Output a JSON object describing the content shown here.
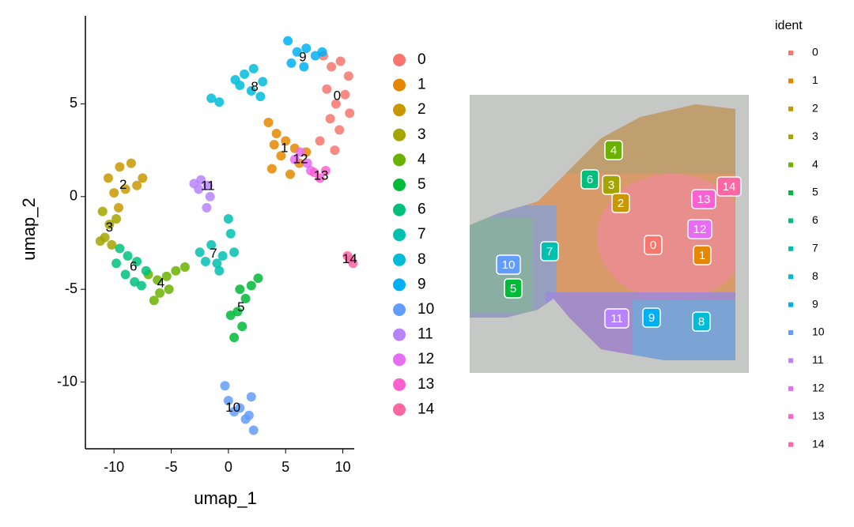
{
  "chart_data": [
    {
      "type": "scatter",
      "x_label": "umap_1",
      "y_label": "umap_2",
      "xlim": [
        -12.5,
        11
      ],
      "ylim": [
        -13.6,
        9.75
      ],
      "xticks": [
        -10,
        -5,
        0,
        5,
        10
      ],
      "yticks": [
        -10,
        -5,
        0,
        5
      ],
      "series": [
        {
          "name": "0",
          "color": "#F8766D",
          "label_x": 9.5,
          "label_y": 5.4,
          "x": [
            8.3,
            9.0,
            9.8,
            10.5,
            8.6,
            9.4,
            10.2,
            8.9,
            9.7,
            10.6,
            8.0,
            9.3
          ],
          "y": [
            7.6,
            7.0,
            7.3,
            6.5,
            5.8,
            5.0,
            5.5,
            4.2,
            3.6,
            4.5,
            3.0,
            2.5
          ]
        },
        {
          "name": "1",
          "color": "#E58700",
          "label_x": 4.9,
          "label_y": 2.6,
          "x": [
            3.5,
            4.2,
            5.0,
            5.8,
            4.6,
            6.2,
            3.8,
            5.4,
            6.8,
            4.0
          ],
          "y": [
            4.0,
            3.4,
            3.0,
            2.6,
            2.2,
            1.8,
            1.5,
            1.2,
            2.4,
            2.8
          ]
        },
        {
          "name": "2",
          "color": "#C99800",
          "label_x": -9.2,
          "label_y": 0.6,
          "x": [
            -10.5,
            -9.5,
            -8.5,
            -7.5,
            -10.0,
            -9.0,
            -8.0,
            -9.6
          ],
          "y": [
            1.0,
            1.6,
            1.8,
            1.0,
            0.2,
            0.4,
            0.6,
            -0.6
          ]
        },
        {
          "name": "3",
          "color": "#A3A500",
          "label_x": -10.4,
          "label_y": -1.7,
          "x": [
            -11.0,
            -10.4,
            -10.8,
            -9.8,
            -11.2,
            -10.2
          ],
          "y": [
            -0.8,
            -1.5,
            -2.2,
            -1.2,
            -2.4,
            -2.6
          ]
        },
        {
          "name": "4",
          "color": "#6BB100",
          "label_x": -5.9,
          "label_y": -4.7,
          "x": [
            -7.0,
            -6.2,
            -5.4,
            -4.6,
            -6.0,
            -5.2,
            -3.8,
            -6.5
          ],
          "y": [
            -4.2,
            -4.5,
            -4.3,
            -4.0,
            -5.2,
            -5.0,
            -3.8,
            -5.6
          ]
        },
        {
          "name": "5",
          "color": "#00BA38",
          "label_x": 1.1,
          "label_y": -6.0,
          "x": [
            1.0,
            1.5,
            2.0,
            2.6,
            0.8,
            1.2,
            0.5,
            0.2
          ],
          "y": [
            -5.0,
            -5.5,
            -4.8,
            -4.4,
            -6.2,
            -7.0,
            -7.6,
            -6.4
          ]
        },
        {
          "name": "6",
          "color": "#00BF7D",
          "label_x": -8.3,
          "label_y": -3.8,
          "x": [
            -9.5,
            -8.8,
            -8.0,
            -7.2,
            -9.0,
            -8.2,
            -7.6,
            -9.8
          ],
          "y": [
            -2.8,
            -3.2,
            -3.5,
            -4.0,
            -4.2,
            -4.6,
            -4.8,
            -3.6
          ]
        },
        {
          "name": "7",
          "color": "#00C0AF",
          "label_x": -1.3,
          "label_y": -3.1,
          "x": [
            -2.5,
            -1.5,
            -0.5,
            0.5,
            -1.0,
            0.2,
            -2.0,
            0.0,
            -0.8
          ],
          "y": [
            -3.0,
            -2.6,
            -3.2,
            -3.0,
            -3.6,
            -2.0,
            -3.5,
            -1.2,
            -4.0
          ]
        },
        {
          "name": "8",
          "color": "#00BCD8",
          "label_x": 2.3,
          "label_y": 5.9,
          "x": [
            0.6,
            1.4,
            2.2,
            3.0,
            2.0,
            2.8,
            1.0,
            -1.5,
            -0.8
          ],
          "y": [
            6.3,
            6.6,
            6.9,
            6.2,
            5.7,
            5.4,
            6.0,
            5.3,
            5.1
          ]
        },
        {
          "name": "9",
          "color": "#00B0F6",
          "label_x": 6.5,
          "label_y": 7.5,
          "x": [
            5.2,
            6.0,
            6.8,
            7.6,
            8.2,
            5.5,
            6.6
          ],
          "y": [
            8.4,
            7.8,
            8.0,
            7.6,
            7.8,
            7.2,
            7.0
          ]
        },
        {
          "name": "10",
          "color": "#619CFF",
          "label_x": 0.4,
          "label_y": -11.4,
          "x": [
            -0.3,
            0.0,
            0.5,
            1.0,
            1.8,
            2.2,
            1.5,
            2.0
          ],
          "y": [
            -10.2,
            -11.0,
            -11.6,
            -11.4,
            -11.8,
            -12.6,
            -12.0,
            -10.8
          ]
        },
        {
          "name": "11",
          "color": "#B983FF",
          "label_x": -1.8,
          "label_y": 0.55,
          "x": [
            -3.0,
            -2.4,
            -1.8,
            -1.6,
            -1.9,
            -2.6
          ],
          "y": [
            0.7,
            0.9,
            0.6,
            0.0,
            -0.6,
            0.4
          ]
        },
        {
          "name": "12",
          "color": "#E76BF3",
          "label_x": 6.3,
          "label_y": 2.0,
          "x": [
            5.8,
            6.3,
            6.9,
            7.2
          ],
          "y": [
            2.0,
            2.4,
            1.8,
            1.4
          ]
        },
        {
          "name": "13",
          "color": "#FD61D1",
          "label_x": 8.1,
          "label_y": 1.1,
          "x": [
            7.5,
            8.0,
            8.5
          ],
          "y": [
            1.3,
            1.0,
            1.4
          ]
        },
        {
          "name": "14",
          "color": "#FF67A4",
          "label_x": 10.6,
          "label_y": -3.4,
          "x": [
            10.4,
            10.7,
            10.9
          ],
          "y": [
            -3.2,
            -3.4,
            -3.6
          ]
        }
      ]
    },
    {
      "type": "spatial",
      "legend_title": "ident",
      "labels": [
        {
          "label": "4",
          "color": "#6BB100"
        },
        {
          "label": "6",
          "color": "#00BF7D"
        },
        {
          "label": "3",
          "color": "#A3A500"
        },
        {
          "label": "2",
          "color": "#C99800"
        },
        {
          "label": "13",
          "color": "#FD61D1"
        },
        {
          "label": "14",
          "color": "#FF67A4"
        },
        {
          "label": "12",
          "color": "#E76BF3"
        },
        {
          "label": "0",
          "color": "#F8766D"
        },
        {
          "label": "1",
          "color": "#E58700"
        },
        {
          "label": "7",
          "color": "#00C0AF"
        },
        {
          "label": "10",
          "color": "#619CFF"
        },
        {
          "label": "5",
          "color": "#00BA38"
        },
        {
          "label": "11",
          "color": "#B983FF"
        },
        {
          "label": "9",
          "color": "#00B0F6"
        },
        {
          "label": "8",
          "color": "#00BCD8"
        }
      ]
    }
  ]
}
